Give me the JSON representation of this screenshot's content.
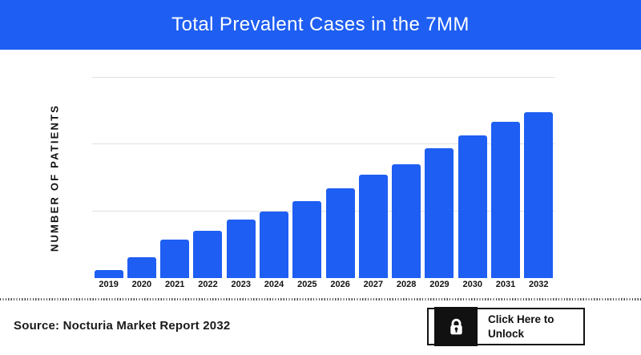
{
  "header": {
    "title": "Total Prevalent Cases in the 7MM",
    "background_color": "#1E5EF2",
    "text_color": "#FFFFFF"
  },
  "chart_data": {
    "type": "bar",
    "title": "Total Prevalent Cases in the 7MM",
    "categories": [
      "2019",
      "2020",
      "2021",
      "2022",
      "2023",
      "2024",
      "2025",
      "2026",
      "2027",
      "2028",
      "2029",
      "2030",
      "2031",
      "2032"
    ],
    "values": [
      12,
      31,
      58,
      71,
      88,
      100,
      115,
      135,
      155,
      170,
      194,
      214,
      234,
      249
    ],
    "xlabel": "",
    "ylabel": "NUMBER OF PATIENTS",
    "ylim": [
      0,
      300
    ],
    "gridlines": [
      100,
      200,
      300
    ],
    "grid": "horizontal-only",
    "y_tick_labels_visible": false,
    "legend": "none",
    "bar_color": "#1E5EF2",
    "gridline_color": "#E0E0E0"
  },
  "footer": {
    "source": "Source: Nocturia Market Report 2032",
    "unlock_button": {
      "label": "Click Here to Unlock",
      "icon": "lock-icon",
      "icon_background": "#111111",
      "border_color": "#111111"
    }
  }
}
